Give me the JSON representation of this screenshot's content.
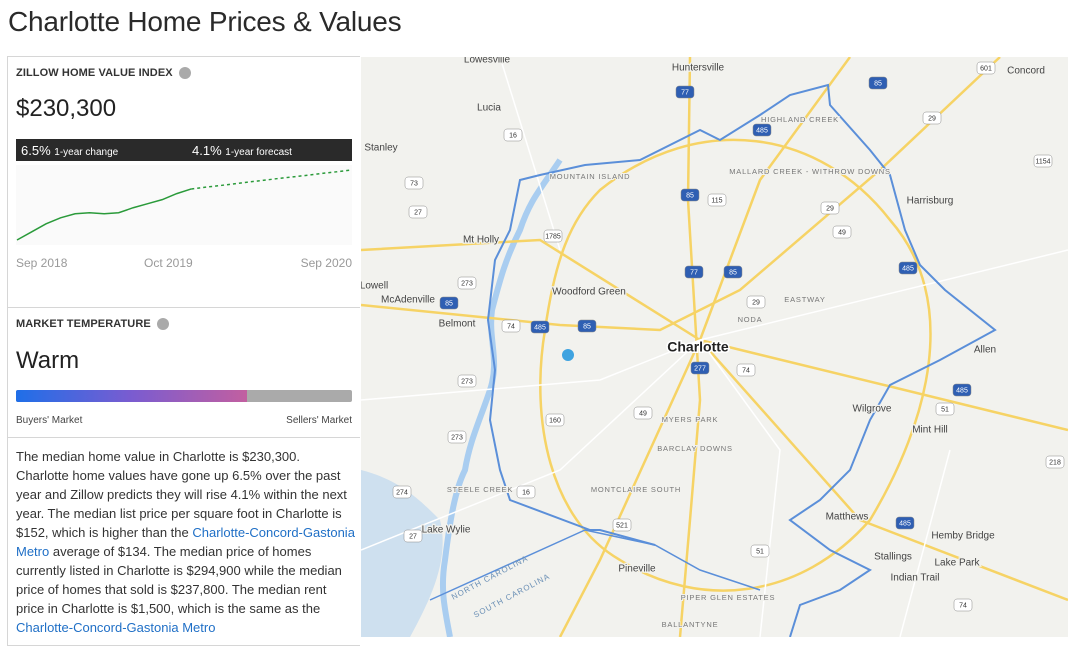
{
  "header": {
    "title": "Charlotte Home Prices & Values"
  },
  "zhvi": {
    "label": "ZILLOW HOME VALUE INDEX",
    "value": "$230,300",
    "change": "6.5%",
    "change_label": "1-year change",
    "forecast": "4.1%",
    "forecast_label": "1-year forecast",
    "sparkline": {
      "history": [
        205,
        209,
        213,
        216,
        218,
        218.5,
        218,
        218.5,
        221,
        223,
        225,
        228,
        230.3
      ],
      "forecast": [
        231.2,
        232,
        232.9,
        233.8,
        234.6,
        235.5,
        236.3,
        237.1,
        238,
        238.8,
        239.7
      ],
      "x_labels": [
        "Sep 2018",
        "Oct 2019",
        "Sep 2020"
      ]
    }
  },
  "market_temperature": {
    "label": "MARKET TEMPERATURE",
    "value": "Warm",
    "left_label": "Buyers' Market",
    "right_label": "Sellers' Market"
  },
  "description": {
    "text_1": "The median home value in Charlotte is $230,300. Charlotte home values have gone up 6.5% over the past year and Zillow predicts they will rise 4.1% within the next year. The median list price per square foot in Charlotte is $152, which is higher than the ",
    "link_1": "Charlotte-Concord-Gastonia Metro",
    "text_2": " average of $134. The median price of homes currently listed in Charlotte is $294,900 while the median price of homes that sold is $237,800. The median rent price in Charlotte is $1,500, which is the same as the ",
    "link_2": "Charlotte-Concord-Gastonia Metro"
  },
  "map": {
    "city": "Charlotte",
    "towns": [
      "Lowesville",
      "Huntersville",
      "Concord",
      "Lucia",
      "Stanley",
      "Harrisburg",
      "Mt Holly",
      "Woodford Green",
      "Lowell",
      "McAdenville",
      "Belmont",
      "Allen",
      "Wilgrove",
      "Mint Hill",
      "Lake Wylie",
      "Matthews",
      "Hemby Bridge",
      "Stallings",
      "Lake Park",
      "Indian Trail",
      "Pineville"
    ],
    "neighborhoods": [
      "HIGHLAND CREEK",
      "MALLARD CREEK - WITHROW DOWNS",
      "MOUNTAIN ISLAND",
      "EASTWAY",
      "NODA",
      "MYERS PARK",
      "BARCLAY DOWNS",
      "STEELE CREEK",
      "MONTCLAIRE SOUTH",
      "PIPER GLEN ESTATES",
      "BALLANTYNE"
    ],
    "states": [
      "NORTH CAROLINA",
      "SOUTH CAROLINA"
    ],
    "interstates": [
      "77",
      "485",
      "85",
      "85",
      "77",
      "85",
      "85",
      "485",
      "85",
      "277",
      "485",
      "485",
      "485"
    ],
    "routes": [
      "601",
      "29",
      "16",
      "73",
      "27",
      "115",
      "29",
      "49",
      "1785",
      "29",
      "74",
      "273",
      "273",
      "273",
      "74",
      "160",
      "49",
      "274",
      "16",
      "521",
      "51",
      "51",
      "218",
      "1154",
      "74",
      "27"
    ]
  }
}
